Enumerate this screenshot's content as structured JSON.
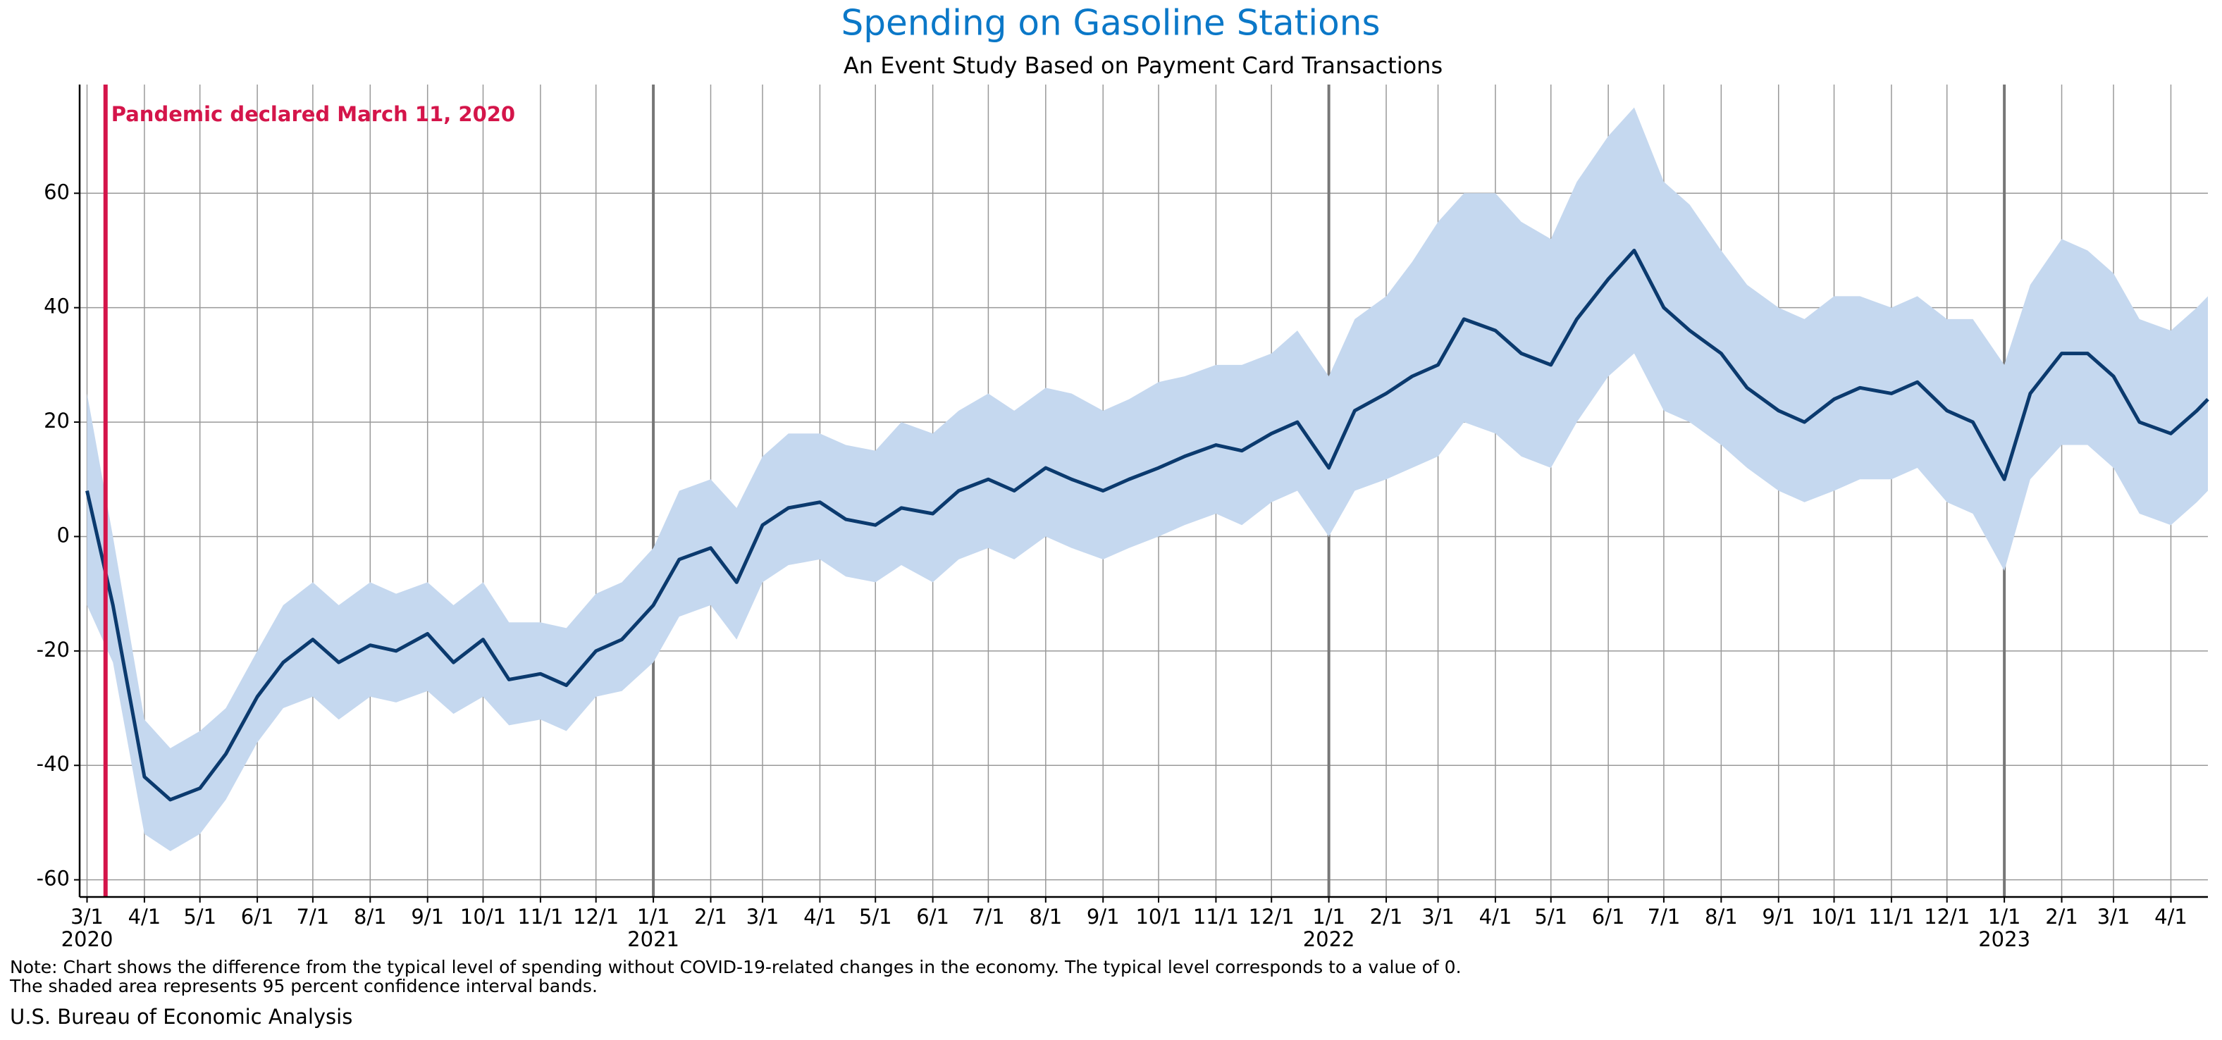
{
  "chart_data": {
    "type": "line",
    "title": "Spending on Gasoline Stations",
    "subtitle": "An Event Study Based on Payment Card Transactions",
    "note": [
      "Note: Chart shows the difference from the typical level of spending without COVID-19-related changes in the economy. The typical level corresponds to a value of 0.",
      "The shaded area represents 95 percent confidence interval bands."
    ],
    "source": "U.S. Bureau of Economic Analysis",
    "color": "#0b3a6e",
    "band_color": "#c5d8ef",
    "title_color": "#0b78c8",
    "annotation": {
      "text": "Pandemic declared March 11, 2020",
      "x": "2020-03-11",
      "color": "#d4154a"
    },
    "x": [
      "2020-03-01",
      "2020-03-15",
      "2020-04-01",
      "2020-04-15",
      "2020-05-01",
      "2020-05-15",
      "2020-06-01",
      "2020-06-15",
      "2020-07-01",
      "2020-07-15",
      "2020-08-01",
      "2020-08-15",
      "2020-09-01",
      "2020-09-15",
      "2020-10-01",
      "2020-10-15",
      "2020-11-01",
      "2020-11-15",
      "2020-12-01",
      "2020-12-15",
      "2021-01-01",
      "2021-01-15",
      "2021-02-01",
      "2021-02-15",
      "2021-03-01",
      "2021-03-15",
      "2021-04-01",
      "2021-04-15",
      "2021-05-01",
      "2021-05-15",
      "2021-06-01",
      "2021-06-15",
      "2021-07-01",
      "2021-07-15",
      "2021-08-01",
      "2021-08-15",
      "2021-09-01",
      "2021-09-15",
      "2021-10-01",
      "2021-10-15",
      "2021-11-01",
      "2021-11-15",
      "2021-12-01",
      "2021-12-15",
      "2022-01-01",
      "2022-01-15",
      "2022-02-01",
      "2022-02-15",
      "2022-03-01",
      "2022-03-15",
      "2022-04-01",
      "2022-04-15",
      "2022-05-01",
      "2022-05-15",
      "2022-06-01",
      "2022-06-15",
      "2022-07-01",
      "2022-07-15",
      "2022-08-01",
      "2022-08-15",
      "2022-09-01",
      "2022-09-15",
      "2022-10-01",
      "2022-10-15",
      "2022-11-01",
      "2022-11-15",
      "2022-12-01",
      "2022-12-15",
      "2023-01-01",
      "2023-01-15",
      "2023-02-01",
      "2023-02-15",
      "2023-03-01",
      "2023-03-15",
      "2023-04-01",
      "2023-04-15",
      "2023-04-21"
    ],
    "values": [
      8,
      -12,
      -42,
      -46,
      -44,
      -38,
      -28,
      -22,
      -18,
      -22,
      -19,
      -20,
      -17,
      -22,
      -18,
      -25,
      -24,
      -26,
      -20,
      -18,
      -12,
      -4,
      -2,
      -8,
      2,
      5,
      6,
      3,
      2,
      5,
      4,
      8,
      10,
      8,
      12,
      10,
      8,
      10,
      12,
      14,
      16,
      15,
      18,
      20,
      12,
      22,
      25,
      28,
      30,
      38,
      36,
      32,
      30,
      38,
      45,
      50,
      40,
      36,
      32,
      26,
      22,
      20,
      24,
      26,
      25,
      27,
      22,
      20,
      10,
      25,
      32,
      32,
      28,
      20,
      18,
      22,
      24
    ],
    "lower": [
      -12,
      -22,
      -52,
      -55,
      -52,
      -46,
      -36,
      -30,
      -28,
      -32,
      -28,
      -29,
      -27,
      -31,
      -28,
      -33,
      -32,
      -34,
      -28,
      -27,
      -22,
      -14,
      -12,
      -18,
      -8,
      -5,
      -4,
      -7,
      -8,
      -5,
      -8,
      -4,
      -2,
      -4,
      0,
      -2,
      -4,
      -2,
      0,
      2,
      4,
      2,
      6,
      8,
      0,
      8,
      10,
      12,
      14,
      20,
      18,
      14,
      12,
      20,
      28,
      32,
      22,
      20,
      16,
      12,
      8,
      6,
      8,
      10,
      10,
      12,
      6,
      4,
      -6,
      10,
      16,
      16,
      12,
      4,
      2,
      6,
      8
    ],
    "upper": [
      25,
      0,
      -32,
      -37,
      -34,
      -30,
      -20,
      -12,
      -8,
      -12,
      -8,
      -10,
      -8,
      -12,
      -8,
      -15,
      -15,
      -16,
      -10,
      -8,
      -2,
      8,
      10,
      5,
      14,
      18,
      18,
      16,
      15,
      20,
      18,
      22,
      25,
      22,
      26,
      25,
      22,
      24,
      27,
      28,
      30,
      30,
      32,
      36,
      28,
      38,
      42,
      48,
      55,
      60,
      60,
      55,
      52,
      62,
      70,
      75,
      62,
      58,
      50,
      44,
      40,
      38,
      42,
      42,
      40,
      42,
      38,
      38,
      30,
      44,
      52,
      50,
      46,
      38,
      36,
      40,
      42
    ],
    "xlim": [
      "2020-02-26",
      "2023-04-21"
    ],
    "xticks": [
      {
        "value": "2020-03-01",
        "label": "3/1"
      },
      {
        "value": "2020-04-01",
        "label": "4/1"
      },
      {
        "value": "2020-05-01",
        "label": "5/1"
      },
      {
        "value": "2020-06-01",
        "label": "6/1"
      },
      {
        "value": "2020-07-01",
        "label": "7/1"
      },
      {
        "value": "2020-08-01",
        "label": "8/1"
      },
      {
        "value": "2020-09-01",
        "label": "9/1"
      },
      {
        "value": "2020-10-01",
        "label": "10/1"
      },
      {
        "value": "2020-11-01",
        "label": "11/1"
      },
      {
        "value": "2020-12-01",
        "label": "12/1"
      },
      {
        "value": "2021-01-01",
        "label": "1/1"
      },
      {
        "value": "2021-02-01",
        "label": "2/1"
      },
      {
        "value": "2021-03-01",
        "label": "3/1"
      },
      {
        "value": "2021-04-01",
        "label": "4/1"
      },
      {
        "value": "2021-05-01",
        "label": "5/1"
      },
      {
        "value": "2021-06-01",
        "label": "6/1"
      },
      {
        "value": "2021-07-01",
        "label": "7/1"
      },
      {
        "value": "2021-08-01",
        "label": "8/1"
      },
      {
        "value": "2021-09-01",
        "label": "9/1"
      },
      {
        "value": "2021-10-01",
        "label": "10/1"
      },
      {
        "value": "2021-11-01",
        "label": "11/1"
      },
      {
        "value": "2021-12-01",
        "label": "12/1"
      },
      {
        "value": "2022-01-01",
        "label": "1/1"
      },
      {
        "value": "2022-02-01",
        "label": "2/1"
      },
      {
        "value": "2022-03-01",
        "label": "3/1"
      },
      {
        "value": "2022-04-01",
        "label": "4/1"
      },
      {
        "value": "2022-05-01",
        "label": "5/1"
      },
      {
        "value": "2022-06-01",
        "label": "6/1"
      },
      {
        "value": "2022-07-01",
        "label": "7/1"
      },
      {
        "value": "2022-08-01",
        "label": "8/1"
      },
      {
        "value": "2022-09-01",
        "label": "9/1"
      },
      {
        "value": "2022-10-01",
        "label": "10/1"
      },
      {
        "value": "2022-11-01",
        "label": "11/1"
      },
      {
        "value": "2022-12-01",
        "label": "12/1"
      },
      {
        "value": "2023-01-01",
        "label": "1/1"
      },
      {
        "value": "2023-02-01",
        "label": "2/1"
      },
      {
        "value": "2023-03-01",
        "label": "3/1"
      },
      {
        "value": "2023-04-01",
        "label": "4/1"
      }
    ],
    "year_labels": [
      {
        "value": "2020-03-01",
        "label": "2020"
      },
      {
        "value": "2021-01-01",
        "label": "2021"
      },
      {
        "value": "2022-01-01",
        "label": "2022"
      },
      {
        "value": "2023-01-01",
        "label": "2023"
      }
    ],
    "ylim": [
      -63,
      79
    ],
    "yticks": [
      -60,
      -40,
      -20,
      0,
      20,
      40,
      60
    ],
    "grid": true
  }
}
